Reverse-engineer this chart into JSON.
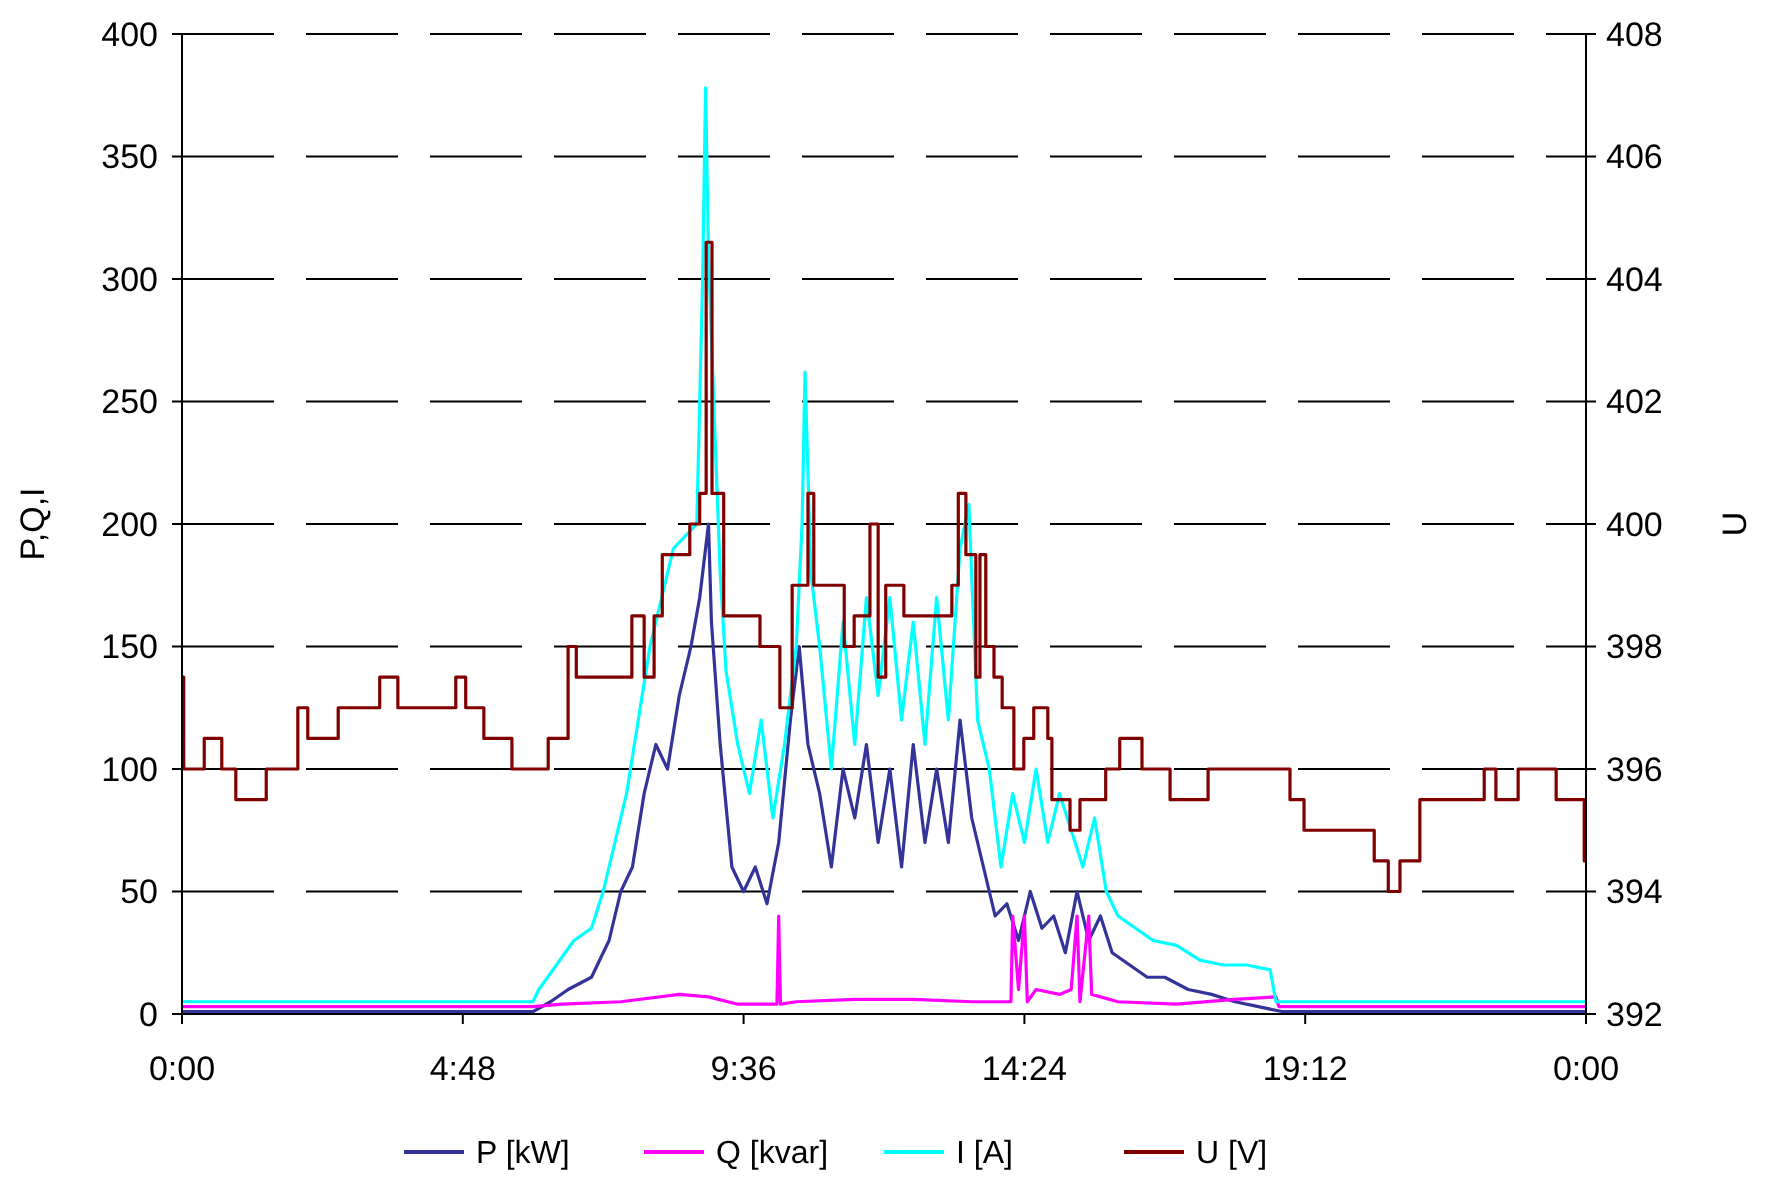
{
  "chart_data": {
    "type": "line",
    "ylabel": "P,Q,I",
    "y2label": "U",
    "xlim": [
      0,
      24
    ],
    "xticks": [
      {
        "value": 0,
        "label": "0:00"
      },
      {
        "value": 4.8,
        "label": "4:48"
      },
      {
        "value": 9.6,
        "label": "9:36"
      },
      {
        "value": 14.4,
        "label": "14:24"
      },
      {
        "value": 19.2,
        "label": "19:12"
      },
      {
        "value": 24,
        "label": "0:00"
      }
    ],
    "ylim": [
      0,
      400
    ],
    "yticks": [
      0,
      50,
      100,
      150,
      200,
      250,
      300,
      350,
      400
    ],
    "y2lim": [
      392,
      408
    ],
    "y2ticks": [
      392,
      394,
      396,
      398,
      400,
      402,
      404,
      406,
      408
    ],
    "grid": "y",
    "legend": "bottom",
    "marker": "none",
    "series": [
      {
        "name": "P [kW]",
        "color": "#333399",
        "x": [
          0,
          6.0,
          6.3,
          6.6,
          7.0,
          7.3,
          7.5,
          7.7,
          7.9,
          8.1,
          8.3,
          8.5,
          8.7,
          8.85,
          9.0,
          9.05,
          9.2,
          9.4,
          9.6,
          9.8,
          10.0,
          10.2,
          10.4,
          10.55,
          10.7,
          10.9,
          11.1,
          11.3,
          11.5,
          11.7,
          11.9,
          12.1,
          12.3,
          12.5,
          12.7,
          12.9,
          13.1,
          13.3,
          13.5,
          13.7,
          13.9,
          14.1,
          14.3,
          14.5,
          14.7,
          14.9,
          15.1,
          15.3,
          15.5,
          15.7,
          15.9,
          16.2,
          16.5,
          16.8,
          17.2,
          17.6,
          18.0,
          18.4,
          18.8,
          24
        ],
        "values": [
          1,
          1,
          5,
          10,
          15,
          30,
          50,
          60,
          90,
          110,
          100,
          130,
          150,
          170,
          200,
          160,
          110,
          60,
          50,
          60,
          45,
          70,
          120,
          150,
          110,
          90,
          60,
          100,
          80,
          110,
          70,
          100,
          60,
          110,
          70,
          100,
          70,
          120,
          80,
          60,
          40,
          45,
          30,
          50,
          35,
          40,
          25,
          50,
          30,
          40,
          25,
          20,
          15,
          15,
          10,
          8,
          5,
          3,
          1,
          1
        ]
      },
      {
        "name": "Q [kvar]",
        "color": "#ff00ff",
        "x": [
          0,
          6.0,
          6.5,
          7.5,
          8.5,
          9.0,
          9.5,
          10.17,
          10.2,
          10.23,
          10.5,
          11.5,
          12.5,
          13.5,
          14.17,
          14.2,
          14.3,
          14.4,
          14.45,
          14.6,
          15.0,
          15.2,
          15.3,
          15.35,
          15.5,
          15.55,
          16.0,
          17.0,
          18.0,
          18.7,
          18.75,
          24
        ],
        "values": [
          3,
          3,
          4,
          5,
          8,
          7,
          4,
          4,
          40,
          4,
          5,
          6,
          6,
          5,
          5,
          40,
          10,
          40,
          5,
          10,
          8,
          10,
          40,
          5,
          40,
          8,
          5,
          4,
          6,
          7,
          3,
          3
        ]
      },
      {
        "name": "I [A]",
        "color": "#00ffff",
        "x": [
          0,
          6.0,
          6.1,
          6.4,
          6.7,
          7.0,
          7.2,
          7.4,
          7.6,
          7.8,
          8.0,
          8.2,
          8.4,
          8.6,
          8.8,
          8.9,
          8.95,
          9.0,
          9.12,
          9.2,
          9.3,
          9.5,
          9.7,
          9.9,
          10.1,
          10.3,
          10.5,
          10.6,
          10.65,
          10.75,
          10.9,
          11.1,
          11.3,
          11.5,
          11.7,
          11.9,
          12.1,
          12.3,
          12.5,
          12.7,
          12.9,
          13.1,
          13.3,
          13.45,
          13.6,
          13.8,
          14.0,
          14.2,
          14.4,
          14.6,
          14.8,
          15.0,
          15.2,
          15.4,
          15.6,
          15.8,
          16.0,
          16.3,
          16.6,
          17.0,
          17.4,
          17.8,
          18.2,
          18.6,
          18.7,
          24
        ],
        "values": [
          5,
          5,
          10,
          20,
          30,
          35,
          50,
          70,
          90,
          120,
          150,
          170,
          190,
          195,
          200,
          300,
          378,
          310,
          230,
          180,
          140,
          110,
          90,
          120,
          80,
          110,
          150,
          200,
          262,
          180,
          150,
          100,
          160,
          110,
          170,
          130,
          170,
          120,
          160,
          110,
          170,
          120,
          190,
          208,
          120,
          100,
          60,
          90,
          70,
          100,
          70,
          90,
          75,
          60,
          80,
          50,
          40,
          35,
          30,
          28,
          22,
          20,
          20,
          18,
          5,
          5
        ]
      },
      {
        "name": "U [V]",
        "color": "#800000",
        "type": "step",
        "axis": "y2",
        "x": [
          0,
          0.03,
          0.38,
          0.68,
          0.92,
          1.44,
          1.98,
          2.15,
          2.67,
          3.38,
          3.69,
          4.68,
          4.85,
          5.16,
          5.64,
          6.26,
          6.6,
          6.74,
          7.69,
          7.9,
          8.07,
          8.21,
          8.68,
          8.85,
          8.96,
          9.06,
          9.26,
          9.88,
          10.22,
          10.43,
          10.7,
          10.8,
          11.32,
          11.49,
          11.76,
          11.9,
          12.03,
          12.34,
          13.16,
          13.27,
          13.4,
          13.57,
          13.64,
          13.74,
          13.88,
          14.02,
          14.22,
          14.39,
          14.56,
          14.8,
          14.87,
          15.18,
          15.35,
          15.79,
          16.03,
          16.41,
          16.89,
          17.54,
          18.94,
          19.18,
          20.38,
          20.62,
          20.82,
          21.16,
          22.26,
          22.46,
          22.84,
          23.49,
          23.97,
          24
        ],
        "values": [
          397.5,
          396,
          396.5,
          396,
          395.5,
          396,
          397,
          396.5,
          397,
          397.5,
          397,
          397.5,
          397,
          396.5,
          396,
          396.5,
          398,
          397.5,
          398.5,
          397.5,
          398.5,
          399.5,
          400,
          400.5,
          404.6,
          400.5,
          398.5,
          398,
          397,
          399,
          400.5,
          399,
          398,
          398.5,
          400,
          397.5,
          399,
          398.5,
          399,
          400.5,
          399.5,
          397.5,
          399.5,
          398,
          397.5,
          397,
          396,
          396.5,
          397,
          396.5,
          395.5,
          395,
          395.5,
          396,
          396.5,
          396,
          395.5,
          396,
          395.5,
          395,
          394.5,
          394,
          394.5,
          395.5,
          396,
          395.5,
          396,
          395.5,
          394.5,
          394.5
        ]
      }
    ]
  }
}
